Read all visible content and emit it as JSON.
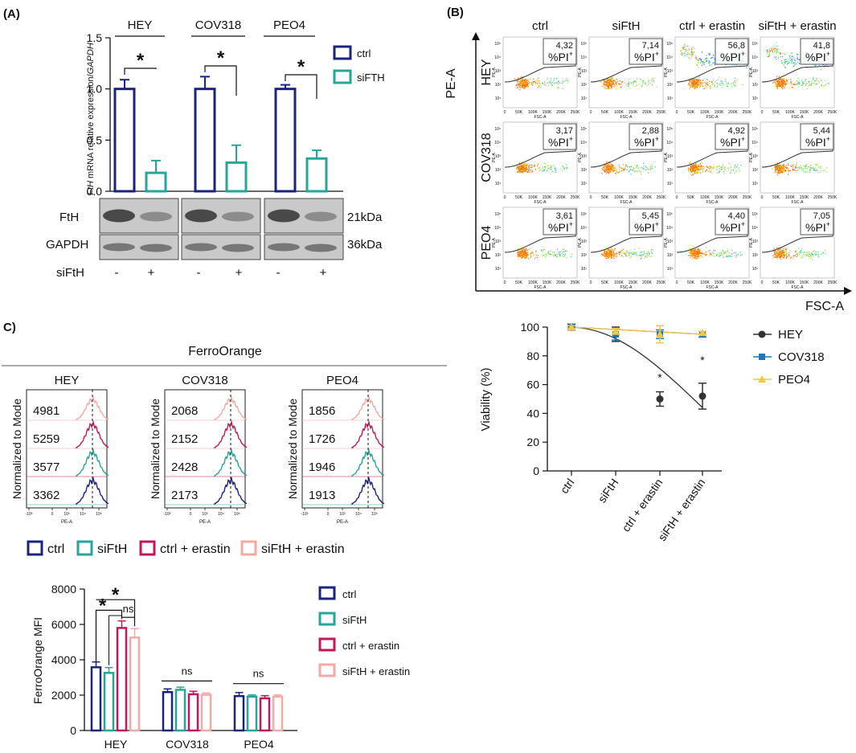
{
  "colors": {
    "ctrl": "#1a237e",
    "siFTH": "#26a69a",
    "ctrl_erastin": "#c2185b",
    "siFTH_erastin": "#f4a9a3",
    "hey": "#333333",
    "cov318": "#1f78b4",
    "peo4": "#f2c744"
  },
  "panel_labels": {
    "a": "(A)",
    "b": "(B)",
    "c": "C)"
  },
  "panelA": {
    "cells": [
      "HEY",
      "COV318",
      "PEO4"
    ],
    "ylabel_gene": "FtH",
    "ylabel_rest": " mRNA relative expression/",
    "ylabel_ref": "GAPDH",
    "yticks": [
      "0.0",
      "0.5",
      "1.0",
      "1.5"
    ],
    "legend": [
      "ctrl",
      "siFTH"
    ],
    "sig": "*",
    "blot_rows": [
      {
        "name": "FtH",
        "size": "21kDa"
      },
      {
        "name": "GAPDH",
        "size": "36kDa"
      }
    ],
    "siFtH_label": "siFtH",
    "signs": [
      "-",
      "+",
      "-",
      "+",
      "-",
      "+"
    ]
  },
  "panelB": {
    "columns": [
      "ctrl",
      "siFtH",
      "ctrl + erastin",
      "siFtH + erastin"
    ],
    "rows": [
      "HEY",
      "COV318",
      "PEO4"
    ],
    "values": [
      [
        "4,32",
        "7,14",
        "56,8",
        "41,8"
      ],
      [
        "3,17",
        "2,88",
        "4,92",
        "5,44"
      ],
      [
        "3,61",
        "5,45",
        "4,40",
        "7,05"
      ]
    ],
    "pi_label": "%PI",
    "pi_sup": "+",
    "yaxis": "PE-A",
    "xaxis": "FSC-A",
    "mini_yticks": [
      "10⁵",
      "10⁴",
      "10³",
      "10²",
      "10¹"
    ],
    "mini_xticks": [
      "0",
      "50K",
      "100K",
      "150K",
      "200K",
      "250K"
    ],
    "mini_xlabel": "FSC-A",
    "mini_ylabel": "PE-A"
  },
  "panelC": {
    "title": "FerroOrange",
    "cells": [
      "HEY",
      "COV318",
      "PEO4"
    ],
    "mfi_values": [
      [
        "4981",
        "5259",
        "3577",
        "3362"
      ],
      [
        "2068",
        "2152",
        "2428",
        "2173"
      ],
      [
        "1856",
        "1726",
        "1946",
        "1913"
      ]
    ],
    "ylabel": "Normalized to Mode",
    "xlabel": "PE-A",
    "xticks": [
      "-10³",
      "0",
      "10³",
      "10⁴",
      "10⁵"
    ],
    "legend": [
      "ctrl",
      "siFtH",
      "ctrl + erastin",
      "siFtH + erastin"
    ]
  },
  "chart_data": [
    {
      "id": "A_qpcr",
      "type": "bar",
      "title": "",
      "ylabel": "FtH mRNA relative expression/GAPDH",
      "categories": [
        "HEY",
        "COV318",
        "PEO4"
      ],
      "series": [
        {
          "name": "ctrl",
          "values": [
            1.0,
            1.0,
            1.0
          ],
          "errors": [
            0.09,
            0.12,
            0.04
          ]
        },
        {
          "name": "siFTH",
          "values": [
            0.18,
            0.28,
            0.32
          ],
          "errors": [
            0.12,
            0.17,
            0.08
          ]
        }
      ],
      "ylim": [
        0,
        1.5
      ],
      "annotations": [
        "*",
        "*",
        "*"
      ]
    },
    {
      "id": "B_viability",
      "type": "line",
      "ylabel": "Viability (%)",
      "categories": [
        "ctrl",
        "siFtH",
        "ctrl + erastin",
        "siFtH + erastin"
      ],
      "series": [
        {
          "name": "HEY",
          "values": [
            100,
            95,
            50,
            52
          ],
          "errors": [
            2,
            5,
            5,
            9
          ]
        },
        {
          "name": "COV318",
          "values": [
            100,
            95,
            95,
            95
          ],
          "errors": [
            1,
            4,
            3,
            2
          ]
        },
        {
          "name": "PEO4",
          "values": [
            100,
            97,
            95,
            96
          ],
          "errors": [
            1,
            2,
            6,
            1
          ]
        }
      ],
      "yticks": [
        "0",
        "20",
        "40",
        "60",
        "80",
        "100"
      ],
      "ylim": [
        0,
        100
      ],
      "annotations": [
        "*",
        "*"
      ]
    },
    {
      "id": "C_mfi",
      "type": "bar",
      "ylabel": "FerroOrange MFI",
      "categories": [
        "HEY",
        "COV318",
        "PEO4"
      ],
      "series": [
        {
          "name": "ctrl",
          "values": [
            3577,
            2173,
            1946
          ],
          "errors": [
            300,
            180,
            200
          ]
        },
        {
          "name": "siFtH",
          "values": [
            3260,
            2300,
            1913
          ],
          "errors": [
            300,
            150,
            100
          ]
        },
        {
          "name": "ctrl + erastin",
          "values": [
            5800,
            2050,
            1820
          ],
          "errors": [
            400,
            170,
            150
          ]
        },
        {
          "name": "siFtH + erastin",
          "values": [
            5259,
            2020,
            1913
          ],
          "errors": [
            500,
            100,
            100
          ]
        }
      ],
      "yticks": [
        "0",
        "2000",
        "4000",
        "6000",
        "8000"
      ],
      "ylim": [
        0,
        8000
      ],
      "annotations": [
        "*",
        "*",
        "ns",
        "ns",
        "ns"
      ]
    }
  ]
}
